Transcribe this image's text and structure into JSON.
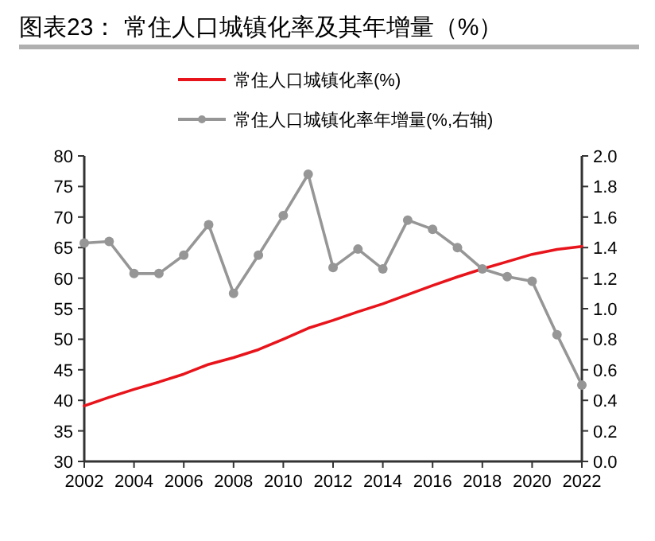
{
  "chart_data": {
    "type": "line",
    "title": "图表23： 常住人口城镇化率及其年增量（%）",
    "x": [
      2002,
      2003,
      2004,
      2005,
      2006,
      2007,
      2008,
      2009,
      2010,
      2011,
      2012,
      2013,
      2014,
      2015,
      2016,
      2017,
      2018,
      2019,
      2020,
      2021,
      2022
    ],
    "xlim": [
      2002,
      2022
    ],
    "xticks": [
      2002,
      2004,
      2006,
      2008,
      2010,
      2012,
      2014,
      2016,
      2018,
      2020,
      2022
    ],
    "ylim": [
      30,
      80
    ],
    "yticks": [
      30,
      35,
      40,
      45,
      50,
      55,
      60,
      65,
      70,
      75,
      80
    ],
    "y2lim": [
      0,
      2
    ],
    "y2ticks": [
      {
        "value": 0,
        "label": "0.0"
      },
      {
        "value": 0.2,
        "label": "0.2"
      },
      {
        "value": 0.4,
        "label": "0.4"
      },
      {
        "value": 0.6,
        "label": "0.6"
      },
      {
        "value": 0.8,
        "label": "0.8"
      },
      {
        "value": 1,
        "label": "1.0"
      },
      {
        "value": 1.2,
        "label": "1.2"
      },
      {
        "value": 1.4,
        "label": "1.4"
      },
      {
        "value": 1.6,
        "label": "1.6"
      },
      {
        "value": 1.8,
        "label": "1.8"
      },
      {
        "value": 2,
        "label": "2.0"
      }
    ],
    "series": [
      {
        "name": "常住人口城镇化率(%)",
        "color": "#e8141b",
        "marker": "none",
        "values": [
          39.1,
          40.5,
          41.8,
          43.0,
          44.3,
          45.9,
          47.0,
          48.3,
          50.0,
          51.8,
          53.1,
          54.5,
          55.8,
          57.3,
          58.8,
          60.2,
          61.5,
          62.7,
          63.9,
          64.7,
          65.2
        ]
      },
      {
        "name": "常住人口城镇化率年增量(%,右轴)",
        "color": "#969696",
        "marker": "circle",
        "axis": "y2",
        "values": [
          1.43,
          1.44,
          1.23,
          1.23,
          1.35,
          1.55,
          1.1,
          1.35,
          1.61,
          1.88,
          1.27,
          1.39,
          1.26,
          1.58,
          1.52,
          1.4,
          1.26,
          1.21,
          1.18,
          0.83,
          0.5
        ]
      }
    ],
    "grid": false,
    "legend": "top",
    "line_style": "solid"
  }
}
